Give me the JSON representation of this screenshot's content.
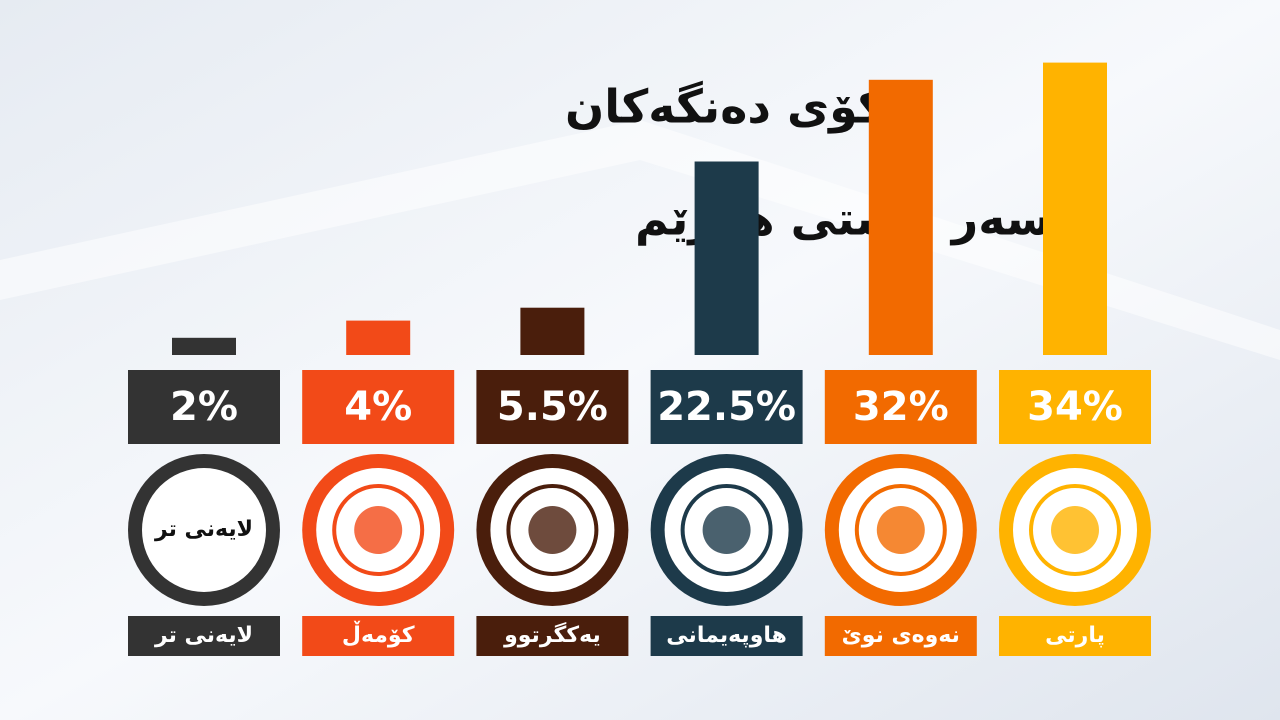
{
  "chart_data": {
    "type": "bar",
    "title": [
      "کۆی دەنگەکان",
      "لەسەر ئاستی هەرێم"
    ],
    "categories": [
      "لایەنی تر",
      "کۆمەڵ",
      "یەکگرتوو",
      "هاوپەیمانی",
      "نەوەی نوێ",
      "پارتی"
    ],
    "values": [
      2,
      4,
      5.5,
      22.5,
      32,
      34
    ],
    "value_labels": [
      "2%",
      "4%",
      "5.5%",
      "22.5%",
      "32%",
      "34%"
    ],
    "colors": [
      "#333333",
      "#f24a18",
      "#4a1e0c",
      "#1d3a4a",
      "#f26a00",
      "#ffb300"
    ]
  }
}
